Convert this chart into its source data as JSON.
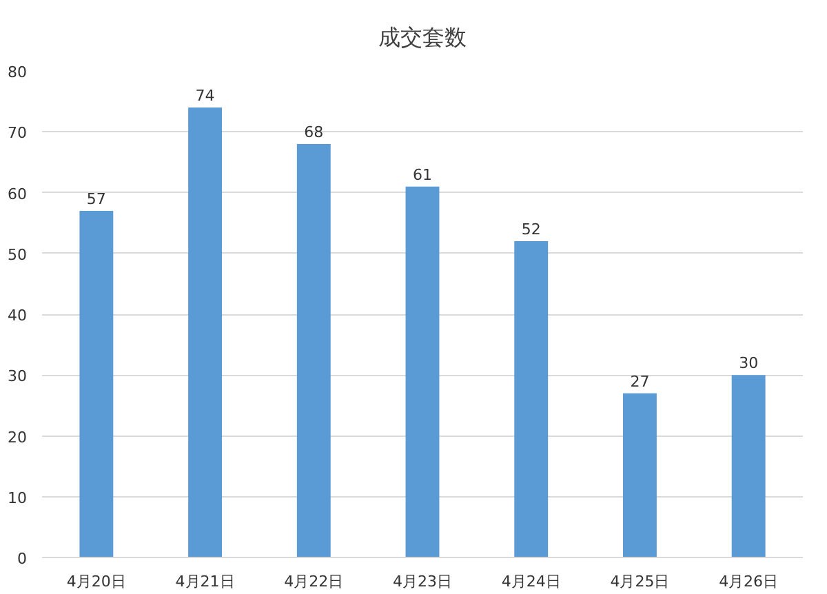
{
  "chart_data": {
    "type": "bar",
    "title": "成交套数",
    "categories": [
      "4月20日",
      "4月21日",
      "4月22日",
      "4月23日",
      "4月24日",
      "4月25日",
      "4月26日"
    ],
    "values": [
      57,
      74,
      68,
      61,
      52,
      27,
      30
    ],
    "color": "#5b9bd5",
    "ylim": [
      0,
      80
    ],
    "yticks": [
      0,
      10,
      20,
      30,
      40,
      50,
      60,
      70,
      80
    ],
    "grid": "y",
    "data_labels": true
  }
}
